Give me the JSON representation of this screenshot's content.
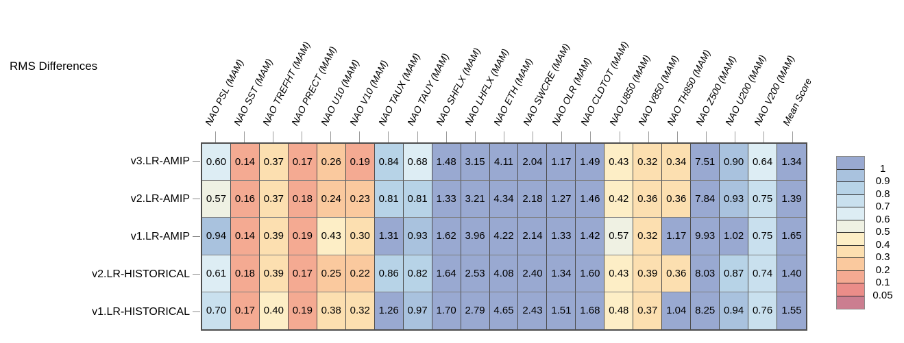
{
  "chart_data": {
    "type": "heatmap",
    "title": "RMS Differences",
    "columns": [
      "NAO PSL (MAM)",
      "NAO SST (MAM)",
      "NAO TREFHT (MAM)",
      "NAO PRECT (MAM)",
      "NAO U10 (MAM)",
      "NAO V10 (MAM)",
      "NAO TAUX (MAM)",
      "NAO TAUY (MAM)",
      "NAO SHFLX (MAM)",
      "NAO LHFLX (MAM)",
      "NAO ETH (MAM)",
      "NAO SWCRE (MAM)",
      "NAO OLR (MAM)",
      "NAO CLDTOT (MAM)",
      "NAO U850 (MAM)",
      "NAO V850 (MAM)",
      "NAO TH850 (MAM)",
      "NAO Z500 (MAM)",
      "NAO U200 (MAM)",
      "NAO V200 (MAM)",
      "Mean Score"
    ],
    "rows": [
      "v3.LR-AMIP",
      "v2.LR-AMIP",
      "v1.LR-AMIP",
      "v2.LR-HISTORICAL",
      "v1.LR-HISTORICAL"
    ],
    "values": [
      [
        "0.60",
        "0.14",
        "0.37",
        "0.17",
        "0.26",
        "0.19",
        "0.84",
        "0.68",
        "1.48",
        "3.15",
        "4.11",
        "2.04",
        "1.17",
        "1.49",
        "0.43",
        "0.32",
        "0.34",
        "7.51",
        "0.90",
        "0.64",
        "1.34"
      ],
      [
        "0.57",
        "0.16",
        "0.37",
        "0.18",
        "0.24",
        "0.23",
        "0.81",
        "0.81",
        "1.33",
        "3.21",
        "4.34",
        "2.18",
        "1.27",
        "1.46",
        "0.42",
        "0.36",
        "0.36",
        "7.84",
        "0.93",
        "0.75",
        "1.39"
      ],
      [
        "0.94",
        "0.14",
        "0.39",
        "0.19",
        "0.43",
        "0.30",
        "1.31",
        "0.93",
        "1.62",
        "3.96",
        "4.22",
        "2.14",
        "1.33",
        "1.42",
        "0.57",
        "0.32",
        "1.17",
        "9.93",
        "1.02",
        "0.75",
        "1.65"
      ],
      [
        "0.61",
        "0.18",
        "0.39",
        "0.17",
        "0.25",
        "0.22",
        "0.86",
        "0.82",
        "1.64",
        "2.53",
        "4.08",
        "2.40",
        "1.34",
        "1.60",
        "0.43",
        "0.39",
        "0.36",
        "8.03",
        "0.87",
        "0.74",
        "1.40"
      ],
      [
        "0.70",
        "0.17",
        "0.40",
        "0.19",
        "0.38",
        "0.32",
        "1.26",
        "0.97",
        "1.70",
        "2.79",
        "4.65",
        "2.43",
        "1.51",
        "1.68",
        "0.48",
        "0.37",
        "1.04",
        "8.25",
        "0.94",
        "0.76",
        "1.55"
      ]
    ],
    "legend": {
      "tick_labels": [
        "1",
        "0.9",
        "0.8",
        "0.7",
        "0.6",
        "0.5",
        "0.4",
        "0.3",
        "0.2",
        "0.1",
        "0.05"
      ],
      "thresholds": [
        1,
        0.9,
        0.8,
        0.7,
        0.6,
        0.5,
        0.4,
        0.3,
        0.2,
        0.1,
        0.05
      ],
      "band_colors": [
        "#99a9d1",
        "#a9c2de",
        "#b7d3e7",
        "#c9e0ee",
        "#ddedf4",
        "#eff1e3",
        "#fdeec6",
        "#fcdfb0",
        "#fac99e",
        "#f4aa92",
        "#eb8d89",
        "#cb7e90"
      ]
    }
  }
}
